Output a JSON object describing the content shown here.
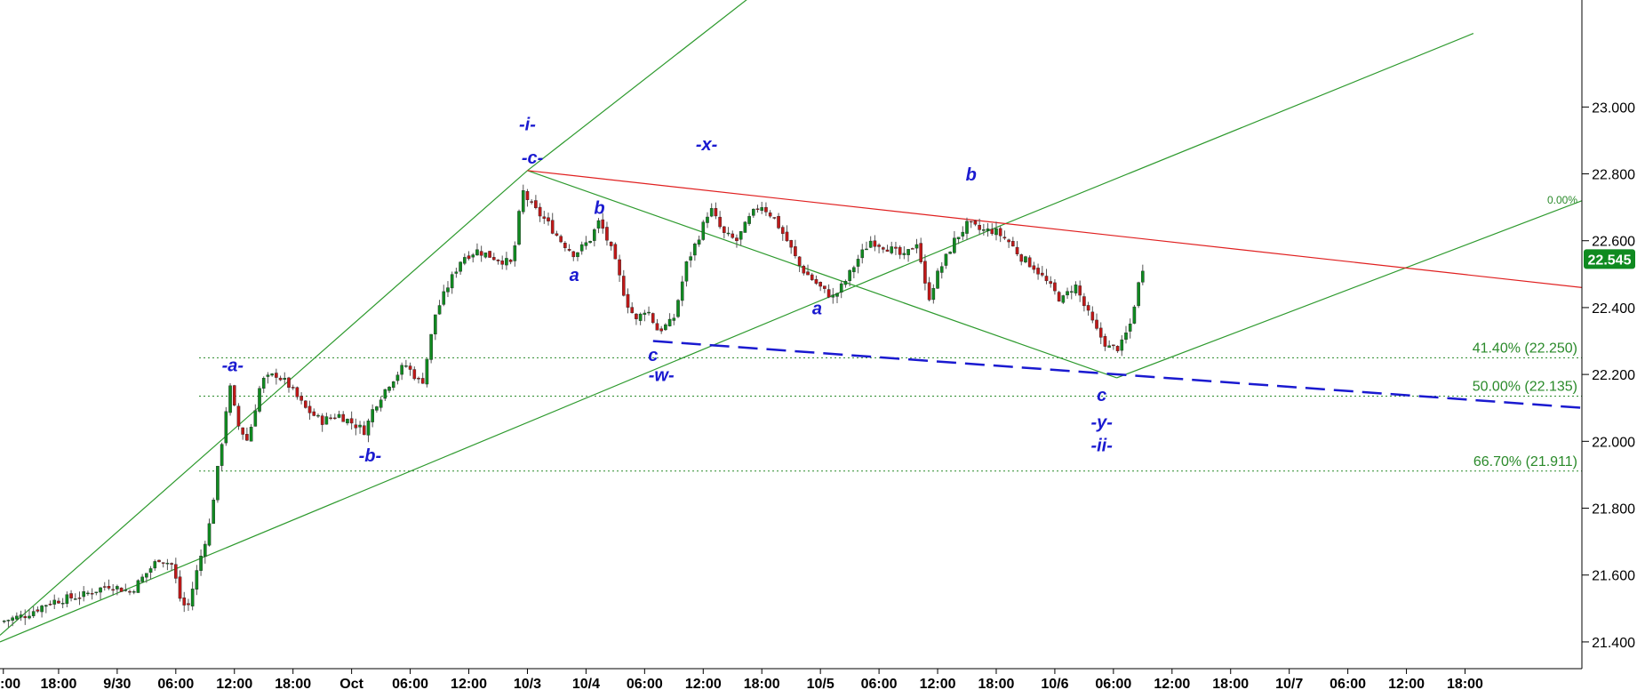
{
  "chart_data": {
    "type": "candlestick",
    "title": "",
    "y_ticks": [
      "23.000",
      "22.800",
      "22.600",
      "22.400",
      "22.200",
      "22.000",
      "21.800",
      "21.600",
      "21.400"
    ],
    "ylim": [
      21.32,
      23.32
    ],
    "x_ticks": [
      {
        "label": ":00",
        "t": 0.2
      },
      {
        "label": "18:00",
        "t": 3.5
      },
      {
        "label": "9/30",
        "t": 7
      },
      {
        "label": "06:00",
        "t": 10.5
      },
      {
        "label": "12:00",
        "t": 14
      },
      {
        "label": "18:00",
        "t": 17.5
      },
      {
        "label": "Oct",
        "t": 21
      },
      {
        "label": "06:00",
        "t": 24.5
      },
      {
        "label": "12:00",
        "t": 28
      },
      {
        "label": "10/3",
        "t": 31.5
      },
      {
        "label": "10/4",
        "t": 35
      },
      {
        "label": "06:00",
        "t": 38.5
      },
      {
        "label": "12:00",
        "t": 42
      },
      {
        "label": "18:00",
        "t": 45.5
      },
      {
        "label": "10/5",
        "t": 49
      },
      {
        "label": "06:00",
        "t": 52.5
      },
      {
        "label": "12:00",
        "t": 56
      },
      {
        "label": "18:00",
        "t": 59.5
      },
      {
        "label": "10/6",
        "t": 63
      },
      {
        "label": "06:00",
        "t": 66.5
      },
      {
        "label": "12:00",
        "t": 70
      },
      {
        "label": "18:00",
        "t": 73.5
      },
      {
        "label": "10/7",
        "t": 77
      },
      {
        "label": "06:00",
        "t": 80.5
      },
      {
        "label": "12:00",
        "t": 84
      },
      {
        "label": "18:00",
        "t": 87.5
      }
    ],
    "price_path": [
      [
        0,
        21.46
      ],
      [
        1.5,
        21.48
      ],
      [
        3,
        21.52
      ],
      [
        5,
        21.54
      ],
      [
        6.5,
        21.57
      ],
      [
        7.8,
        21.55
      ],
      [
        9.5,
        21.65
      ],
      [
        10.3,
        21.63
      ],
      [
        10.8,
        21.52
      ],
      [
        11.2,
        21.5
      ],
      [
        11.8,
        21.62
      ],
      [
        12.5,
        21.75
      ],
      [
        13.2,
        21.98
      ],
      [
        13.7,
        22.17
      ],
      [
        14.2,
        22.05
      ],
      [
        14.8,
        22.0
      ],
      [
        15.6,
        22.18
      ],
      [
        16.5,
        22.2
      ],
      [
        17.2,
        22.17
      ],
      [
        18.2,
        22.1
      ],
      [
        19.2,
        22.06
      ],
      [
        20.2,
        22.08
      ],
      [
        21.2,
        22.05
      ],
      [
        21.8,
        22.03
      ],
      [
        22.3,
        22.1
      ],
      [
        23.2,
        22.17
      ],
      [
        24.2,
        22.23
      ],
      [
        25.2,
        22.17
      ],
      [
        26.0,
        22.38
      ],
      [
        26.8,
        22.47
      ],
      [
        27.6,
        22.55
      ],
      [
        28.5,
        22.57
      ],
      [
        29.5,
        22.55
      ],
      [
        30.6,
        22.53
      ],
      [
        31.2,
        22.75
      ],
      [
        31.8,
        22.7
      ],
      [
        32.6,
        22.66
      ],
      [
        33.5,
        22.6
      ],
      [
        34.3,
        22.56
      ],
      [
        35.2,
        22.6
      ],
      [
        35.8,
        22.66
      ],
      [
        36.6,
        22.56
      ],
      [
        37.4,
        22.42
      ],
      [
        38.0,
        22.36
      ],
      [
        38.6,
        22.4
      ],
      [
        39.3,
        22.33
      ],
      [
        40.2,
        22.36
      ],
      [
        41.0,
        22.53
      ],
      [
        41.8,
        22.62
      ],
      [
        42.4,
        22.7
      ],
      [
        43.2,
        22.62
      ],
      [
        44.0,
        22.6
      ],
      [
        44.8,
        22.67
      ],
      [
        45.4,
        22.71
      ],
      [
        46.2,
        22.67
      ],
      [
        47.0,
        22.6
      ],
      [
        47.8,
        22.52
      ],
      [
        48.6,
        22.48
      ],
      [
        49.2,
        22.45
      ],
      [
        49.8,
        22.43
      ],
      [
        50.5,
        22.48
      ],
      [
        51.3,
        22.55
      ],
      [
        52.0,
        22.6
      ],
      [
        53.0,
        22.58
      ],
      [
        54.0,
        22.55
      ],
      [
        54.8,
        22.6
      ],
      [
        55.4,
        22.42
      ],
      [
        56.0,
        22.5
      ],
      [
        57.0,
        22.6
      ],
      [
        57.8,
        22.65
      ],
      [
        58.6,
        22.63
      ],
      [
        59.4,
        22.63
      ],
      [
        60.2,
        22.6
      ],
      [
        61.0,
        22.55
      ],
      [
        61.8,
        22.52
      ],
      [
        62.6,
        22.47
      ],
      [
        63.4,
        22.42
      ],
      [
        64.2,
        22.47
      ],
      [
        64.8,
        22.4
      ],
      [
        65.5,
        22.33
      ],
      [
        66.2,
        22.28
      ],
      [
        66.9,
        22.28
      ],
      [
        67.5,
        22.35
      ],
      [
        68.0,
        22.47
      ],
      [
        68.4,
        22.55
      ]
    ],
    "last_price": "22.545",
    "trendlines": [
      {
        "kind": "green",
        "points": [
          [
            0,
            21.42
          ],
          [
            31.5,
            22.81
          ],
          [
            52.0,
            23.61
          ]
        ]
      },
      {
        "kind": "green",
        "points": [
          [
            0,
            21.4
          ],
          [
            60.0,
            22.65
          ],
          [
            88.0,
            23.22
          ]
        ]
      },
      {
        "kind": "green",
        "points": [
          [
            31.5,
            22.81
          ],
          [
            66.7,
            22.19
          ]
        ]
      },
      {
        "kind": "green",
        "points": [
          [
            66.7,
            22.19
          ],
          [
            94.5,
            22.72
          ]
        ]
      },
      {
        "kind": "red",
        "points": [
          [
            31.5,
            22.81
          ],
          [
            94.5,
            22.46
          ]
        ]
      },
      {
        "kind": "blue-dashed",
        "points": [
          [
            39.0,
            22.3
          ],
          [
            94.5,
            22.1
          ]
        ]
      }
    ],
    "fib_levels": [
      {
        "label": "0.00%",
        "value": 22.7,
        "line": false
      },
      {
        "label": "41.40% (22.250)",
        "value": 22.25,
        "line": true
      },
      {
        "label": "50.00% (22.135)",
        "value": 22.135,
        "line": true
      },
      {
        "label": "66.70% (21.911)",
        "value": 21.911,
        "line": true
      }
    ],
    "wave_labels": [
      {
        "text": "-i-",
        "t": 31.5,
        "v": 22.93
      },
      {
        "text": "-c-",
        "t": 31.8,
        "v": 22.83
      },
      {
        "text": "-x-",
        "t": 42.2,
        "v": 22.87
      },
      {
        "text": "b",
        "t": 35.8,
        "v": 22.68
      },
      {
        "text": "a",
        "t": 34.3,
        "v": 22.48
      },
      {
        "text": "b",
        "t": 58.0,
        "v": 22.78
      },
      {
        "text": "a",
        "t": 48.8,
        "v": 22.38
      },
      {
        "text": "c",
        "t": 39.0,
        "v": 22.24
      },
      {
        "text": "-w-",
        "t": 39.5,
        "v": 22.18
      },
      {
        "text": "-a-",
        "t": 13.9,
        "v": 22.21
      },
      {
        "text": "-b-",
        "t": 22.1,
        "v": 21.94
      },
      {
        "text": "c",
        "t": 65.8,
        "v": 22.12
      },
      {
        "text": "-y-",
        "t": 65.8,
        "v": 22.04
      },
      {
        "text": "-ii-",
        "t": 65.8,
        "v": 21.97
      }
    ]
  }
}
